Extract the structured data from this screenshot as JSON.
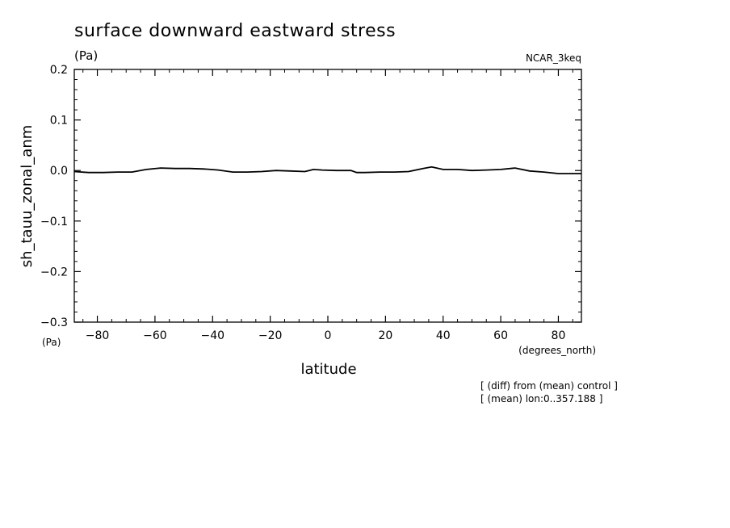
{
  "chart_data": {
    "type": "line",
    "title": "surface downward eastward stress",
    "title_units": "(Pa)",
    "source_label": "NCAR_3keq",
    "xlabel": "latitude",
    "xunits": "(degrees_north)",
    "ylabel": "sh_tauu_zonal_anm",
    "yunits": "(Pa)",
    "xlim": [
      -88,
      88
    ],
    "ylim": [
      -0.3,
      0.2
    ],
    "xticks": [
      -80,
      -60,
      -40,
      -20,
      0,
      20,
      40,
      60,
      80
    ],
    "xtick_labels": [
      "−80",
      "−60",
      "−40",
      "−20",
      "0",
      "20",
      "40",
      "60",
      "80"
    ],
    "yticks": [
      0.2,
      0.1,
      0.0,
      -0.1,
      -0.2,
      -0.3
    ],
    "ytick_labels": [
      "0.2",
      "0.1",
      "0.0",
      "−0.1",
      "−0.2",
      "−0.3"
    ],
    "notes": [
      "[ (diff) from (mean) control ]",
      "[ (mean) lon:0..357.188 ]"
    ],
    "series": [
      {
        "name": "sh_tauu_zonal_anm",
        "color": "#000000",
        "x": [
          -88,
          -83,
          -78,
          -73,
          -68,
          -63,
          -58,
          -53,
          -48,
          -43,
          -38,
          -33,
          -28,
          -23,
          -18,
          -13,
          -8,
          -5,
          -2,
          3,
          8,
          10,
          13,
          18,
          23,
          28,
          33,
          36,
          40,
          45,
          50,
          55,
          60,
          65,
          70,
          75,
          80,
          85,
          88
        ],
        "y": [
          -0.002,
          -0.004,
          -0.004,
          -0.003,
          -0.003,
          0.002,
          0.005,
          0.004,
          0.004,
          0.003,
          0.001,
          -0.003,
          -0.003,
          -0.002,
          0.0,
          -0.001,
          -0.002,
          0.002,
          0.001,
          0.0,
          0.0,
          -0.004,
          -0.004,
          -0.003,
          -0.003,
          -0.002,
          0.004,
          0.007,
          0.002,
          0.002,
          0.0,
          0.001,
          0.002,
          0.005,
          -0.001,
          -0.003,
          -0.006,
          -0.006,
          -0.006
        ]
      }
    ]
  }
}
